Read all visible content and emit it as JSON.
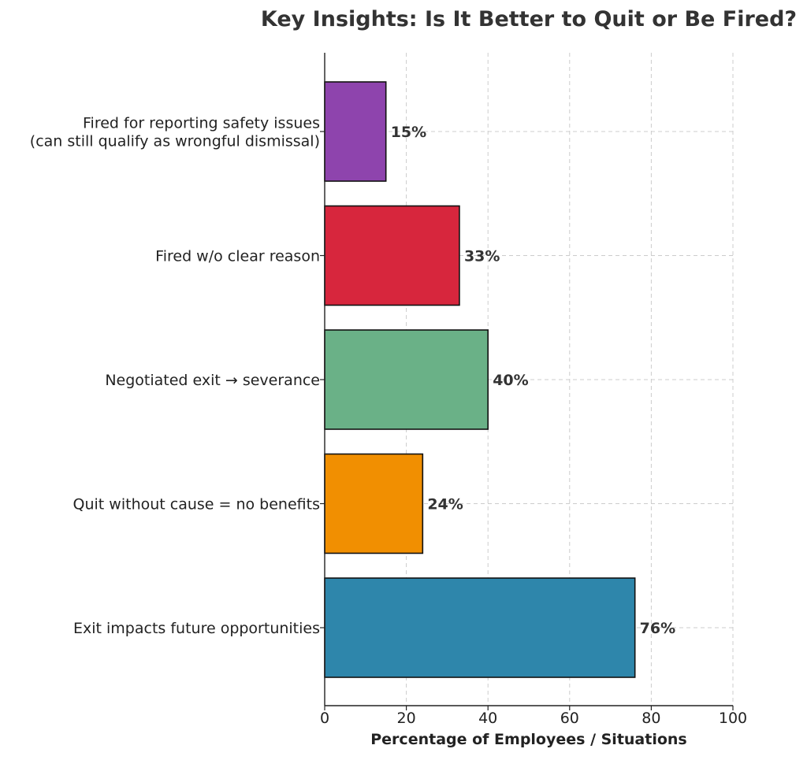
{
  "chart_data": {
    "type": "bar",
    "orientation": "horizontal",
    "title": "Key Insights: Is It Better to Quit or Be Fired?",
    "xlabel": "Percentage of Employees / Situations",
    "ylabel": "",
    "xlim": [
      0,
      100
    ],
    "xticks": [
      0,
      20,
      40,
      60,
      80,
      100
    ],
    "grid": true,
    "categories": [
      [
        "Fired for reporting safety issues",
        "(can still qualify as wrongful dismissal)"
      ],
      [
        "Fired w/o clear reason"
      ],
      [
        "Negotiated exit → severance"
      ],
      [
        "Quit without cause = no benefits"
      ],
      [
        "Exit impacts future opportunities"
      ]
    ],
    "values": [
      15,
      33,
      40,
      24,
      76
    ],
    "value_labels": [
      "15%",
      "33%",
      "40%",
      "24%",
      "76%"
    ],
    "colors": [
      "#8e44ad",
      "#d7263d",
      "#6ab187",
      "#f18f01",
      "#2e86ab"
    ]
  }
}
